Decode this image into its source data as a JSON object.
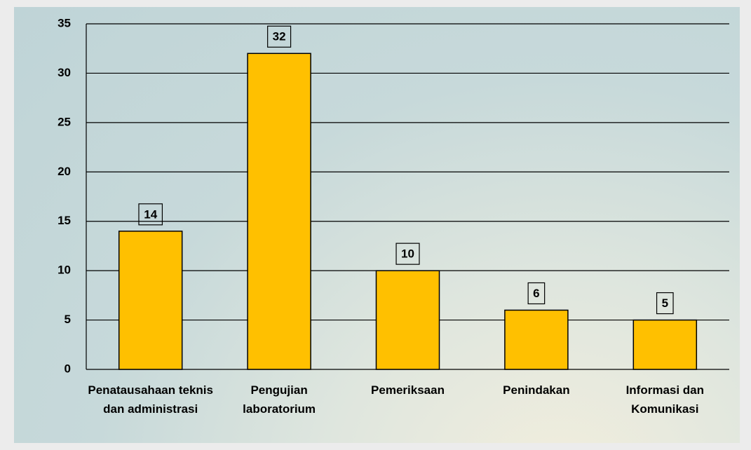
{
  "chart_data": {
    "type": "bar",
    "categories": [
      "Penatausahaan teknis dan administrasi",
      "Pengujian laboratorium",
      "Pemeriksaan",
      "Penindakan",
      "Informasi dan Komunikasi"
    ],
    "values": [
      14,
      32,
      10,
      6,
      5
    ],
    "color": "#ffc000",
    "ylim": [
      0,
      35
    ],
    "yticks": [
      0,
      5,
      10,
      15,
      20,
      25,
      30,
      35
    ],
    "grid": true
  }
}
